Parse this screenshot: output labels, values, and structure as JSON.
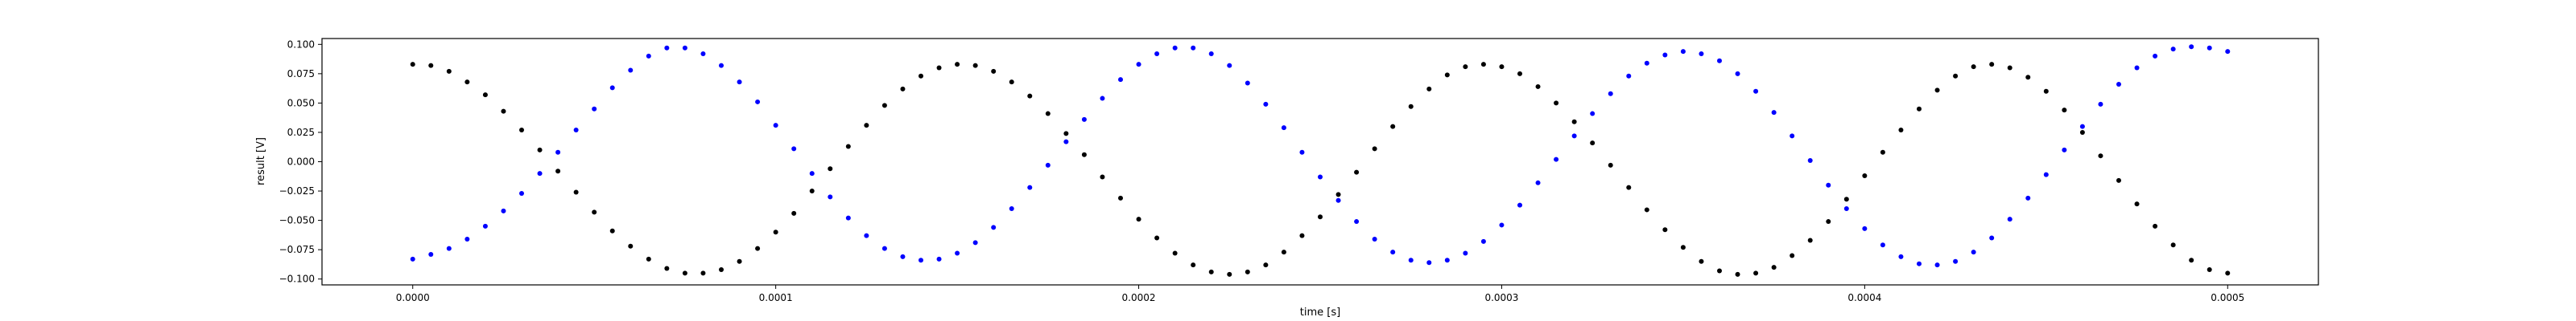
{
  "chart_data": {
    "type": "scatter",
    "title": "",
    "xlabel": "time [s]",
    "ylabel": "result [V]",
    "xlim": [
      -2.5e-05,
      0.000525
    ],
    "ylim": [
      -0.105,
      0.105
    ],
    "grid": false,
    "x_ticks": [
      0.0,
      0.0001,
      0.0002,
      0.0003,
      0.0004,
      0.0005
    ],
    "x_tick_labels": [
      "0.0000",
      "0.0001",
      "0.0002",
      "0.0003",
      "0.0004",
      "0.0005"
    ],
    "y_ticks": [
      -0.1,
      -0.075,
      -0.05,
      -0.025,
      0.0,
      0.025,
      0.05,
      0.075,
      0.1
    ],
    "y_tick_labels": [
      "−0.100",
      "−0.075",
      "−0.050",
      "−0.025",
      "0.000",
      "0.025",
      "0.050",
      "0.075",
      "0.100"
    ],
    "series": [
      {
        "color": "#000000",
        "points": [
          [
            0.0,
            0.083
          ],
          [
            5e-06,
            0.082
          ],
          [
            1e-05,
            0.077
          ],
          [
            1.5e-05,
            0.068
          ],
          [
            2e-05,
            0.057
          ],
          [
            2.5e-05,
            0.043
          ],
          [
            3e-05,
            0.027
          ],
          [
            3.5e-05,
            0.01
          ],
          [
            4e-05,
            -0.008
          ],
          [
            4.5e-05,
            -0.026
          ],
          [
            5e-05,
            -0.043
          ],
          [
            5.5e-05,
            -0.059
          ],
          [
            6e-05,
            -0.072
          ],
          [
            6.5e-05,
            -0.083
          ],
          [
            7e-05,
            -0.091
          ],
          [
            7.5e-05,
            -0.095
          ],
          [
            8e-05,
            -0.095
          ],
          [
            8.5e-05,
            -0.092
          ],
          [
            9e-05,
            -0.085
          ],
          [
            9.5e-05,
            -0.074
          ],
          [
            0.0001,
            -0.06
          ],
          [
            0.000105,
            -0.044
          ],
          [
            0.00011,
            -0.025
          ],
          [
            0.000115,
            -0.006
          ],
          [
            0.00012,
            0.013
          ],
          [
            0.000125,
            0.031
          ],
          [
            0.00013,
            0.048
          ],
          [
            0.000135,
            0.062
          ],
          [
            0.00014,
            0.073
          ],
          [
            0.000145,
            0.08
          ],
          [
            0.00015,
            0.083
          ],
          [
            0.000155,
            0.082
          ],
          [
            0.00016,
            0.077
          ],
          [
            0.000165,
            0.068
          ],
          [
            0.00017,
            0.056
          ],
          [
            0.000175,
            0.041
          ],
          [
            0.00018,
            0.024
          ],
          [
            0.000185,
            0.006
          ],
          [
            0.00019,
            -0.013
          ],
          [
            0.000195,
            -0.031
          ],
          [
            0.0002,
            -0.049
          ],
          [
            0.000205,
            -0.065
          ],
          [
            0.00021,
            -0.078
          ],
          [
            0.000215,
            -0.088
          ],
          [
            0.00022,
            -0.094
          ],
          [
            0.000225,
            -0.096
          ],
          [
            0.00023,
            -0.094
          ],
          [
            0.000235,
            -0.088
          ],
          [
            0.00024,
            -0.077
          ],
          [
            0.000245,
            -0.063
          ],
          [
            0.00025,
            -0.047
          ],
          [
            0.000255,
            -0.028
          ],
          [
            0.00026,
            -0.009
          ],
          [
            0.000265,
            0.011
          ],
          [
            0.00027,
            0.03
          ],
          [
            0.000275,
            0.047
          ],
          [
            0.00028,
            0.062
          ],
          [
            0.000285,
            0.074
          ],
          [
            0.00029,
            0.081
          ],
          [
            0.000295,
            0.083
          ],
          [
            0.0003,
            0.081
          ],
          [
            0.000305,
            0.075
          ],
          [
            0.00031,
            0.064
          ],
          [
            0.000315,
            0.05
          ],
          [
            0.00032,
            0.034
          ],
          [
            0.000325,
            0.016
          ],
          [
            0.00033,
            -0.003
          ],
          [
            0.000335,
            -0.022
          ],
          [
            0.00034,
            -0.041
          ],
          [
            0.000345,
            -0.058
          ],
          [
            0.00035,
            -0.073
          ],
          [
            0.000355,
            -0.085
          ],
          [
            0.00036,
            -0.093
          ],
          [
            0.000365,
            -0.096
          ],
          [
            0.00037,
            -0.095
          ],
          [
            0.000375,
            -0.09
          ],
          [
            0.00038,
            -0.08
          ],
          [
            0.000385,
            -0.067
          ],
          [
            0.00039,
            -0.051
          ],
          [
            0.000395,
            -0.032
          ],
          [
            0.0004,
            -0.012
          ],
          [
            0.000405,
            0.008
          ],
          [
            0.00041,
            0.027
          ],
          [
            0.000415,
            0.045
          ],
          [
            0.00042,
            0.061
          ],
          [
            0.000425,
            0.073
          ],
          [
            0.00043,
            0.081
          ],
          [
            0.000435,
            0.083
          ],
          [
            0.00044,
            0.08
          ],
          [
            0.000445,
            0.072
          ],
          [
            0.00045,
            0.06
          ],
          [
            0.000455,
            0.044
          ],
          [
            0.00046,
            0.025
          ],
          [
            0.000465,
            0.005
          ],
          [
            0.00047,
            -0.016
          ],
          [
            0.000475,
            -0.036
          ],
          [
            0.00048,
            -0.055
          ],
          [
            0.000485,
            -0.071
          ],
          [
            0.00049,
            -0.084
          ],
          [
            0.000495,
            -0.092
          ],
          [
            0.0005,
            -0.095
          ]
        ]
      },
      {
        "color": "#0000ff",
        "points": [
          [
            0.0,
            -0.083
          ],
          [
            5e-06,
            -0.079
          ],
          [
            1e-05,
            -0.074
          ],
          [
            1.5e-05,
            -0.066
          ],
          [
            2e-05,
            -0.055
          ],
          [
            2.5e-05,
            -0.042
          ],
          [
            3e-05,
            -0.027
          ],
          [
            3.5e-05,
            -0.01
          ],
          [
            4e-05,
            0.008
          ],
          [
            4.5e-05,
            0.027
          ],
          [
            5e-05,
            0.045
          ],
          [
            5.5e-05,
            0.063
          ],
          [
            6e-05,
            0.078
          ],
          [
            6.5e-05,
            0.09
          ],
          [
            7e-05,
            0.097
          ],
          [
            7.5e-05,
            0.097
          ],
          [
            8e-05,
            0.092
          ],
          [
            8.5e-05,
            0.082
          ],
          [
            9e-05,
            0.068
          ],
          [
            9.5e-05,
            0.051
          ],
          [
            0.0001,
            0.031
          ],
          [
            0.000105,
            0.011
          ],
          [
            0.00011,
            -0.01
          ],
          [
            0.000115,
            -0.03
          ],
          [
            0.00012,
            -0.048
          ],
          [
            0.000125,
            -0.063
          ],
          [
            0.00013,
            -0.074
          ],
          [
            0.000135,
            -0.081
          ],
          [
            0.00014,
            -0.084
          ],
          [
            0.000145,
            -0.083
          ],
          [
            0.00015,
            -0.078
          ],
          [
            0.000155,
            -0.069
          ],
          [
            0.00016,
            -0.056
          ],
          [
            0.000165,
            -0.04
          ],
          [
            0.00017,
            -0.022
          ],
          [
            0.000175,
            -0.003
          ],
          [
            0.00018,
            0.017
          ],
          [
            0.000185,
            0.036
          ],
          [
            0.00019,
            0.054
          ],
          [
            0.000195,
            0.07
          ],
          [
            0.0002,
            0.083
          ],
          [
            0.000205,
            0.092
          ],
          [
            0.00021,
            0.097
          ],
          [
            0.000215,
            0.097
          ],
          [
            0.00022,
            0.092
          ],
          [
            0.000225,
            0.082
          ],
          [
            0.00023,
            0.067
          ],
          [
            0.000235,
            0.049
          ],
          [
            0.00024,
            0.029
          ],
          [
            0.000245,
            0.008
          ],
          [
            0.00025,
            -0.013
          ],
          [
            0.000255,
            -0.033
          ],
          [
            0.00026,
            -0.051
          ],
          [
            0.000265,
            -0.066
          ],
          [
            0.00027,
            -0.077
          ],
          [
            0.000275,
            -0.084
          ],
          [
            0.00028,
            -0.086
          ],
          [
            0.000285,
            -0.084
          ],
          [
            0.00029,
            -0.078
          ],
          [
            0.000295,
            -0.068
          ],
          [
            0.0003,
            -0.054
          ],
          [
            0.000305,
            -0.037
          ],
          [
            0.00031,
            -0.018
          ],
          [
            0.000315,
            0.002
          ],
          [
            0.00032,
            0.022
          ],
          [
            0.000325,
            0.041
          ],
          [
            0.00033,
            0.058
          ],
          [
            0.000335,
            0.073
          ],
          [
            0.00034,
            0.084
          ],
          [
            0.000345,
            0.091
          ],
          [
            0.00035,
            0.094
          ],
          [
            0.000355,
            0.092
          ],
          [
            0.00036,
            0.086
          ],
          [
            0.000365,
            0.075
          ],
          [
            0.00037,
            0.06
          ],
          [
            0.000375,
            0.042
          ],
          [
            0.00038,
            0.022
          ],
          [
            0.000385,
            0.001
          ],
          [
            0.00039,
            -0.02
          ],
          [
            0.000395,
            -0.04
          ],
          [
            0.0004,
            -0.057
          ],
          [
            0.000405,
            -0.071
          ],
          [
            0.00041,
            -0.081
          ],
          [
            0.000415,
            -0.087
          ],
          [
            0.00042,
            -0.088
          ],
          [
            0.000425,
            -0.085
          ],
          [
            0.00043,
            -0.077
          ],
          [
            0.000435,
            -0.065
          ],
          [
            0.00044,
            -0.049
          ],
          [
            0.000445,
            -0.031
          ],
          [
            0.00045,
            -0.011
          ],
          [
            0.000455,
            0.01
          ],
          [
            0.00046,
            0.03
          ],
          [
            0.000465,
            0.049
          ],
          [
            0.00047,
            0.066
          ],
          [
            0.000475,
            0.08
          ],
          [
            0.00048,
            0.09
          ],
          [
            0.000485,
            0.096
          ],
          [
            0.00049,
            0.098
          ],
          [
            0.000495,
            0.097
          ],
          [
            0.0005,
            0.094
          ]
        ]
      }
    ]
  }
}
